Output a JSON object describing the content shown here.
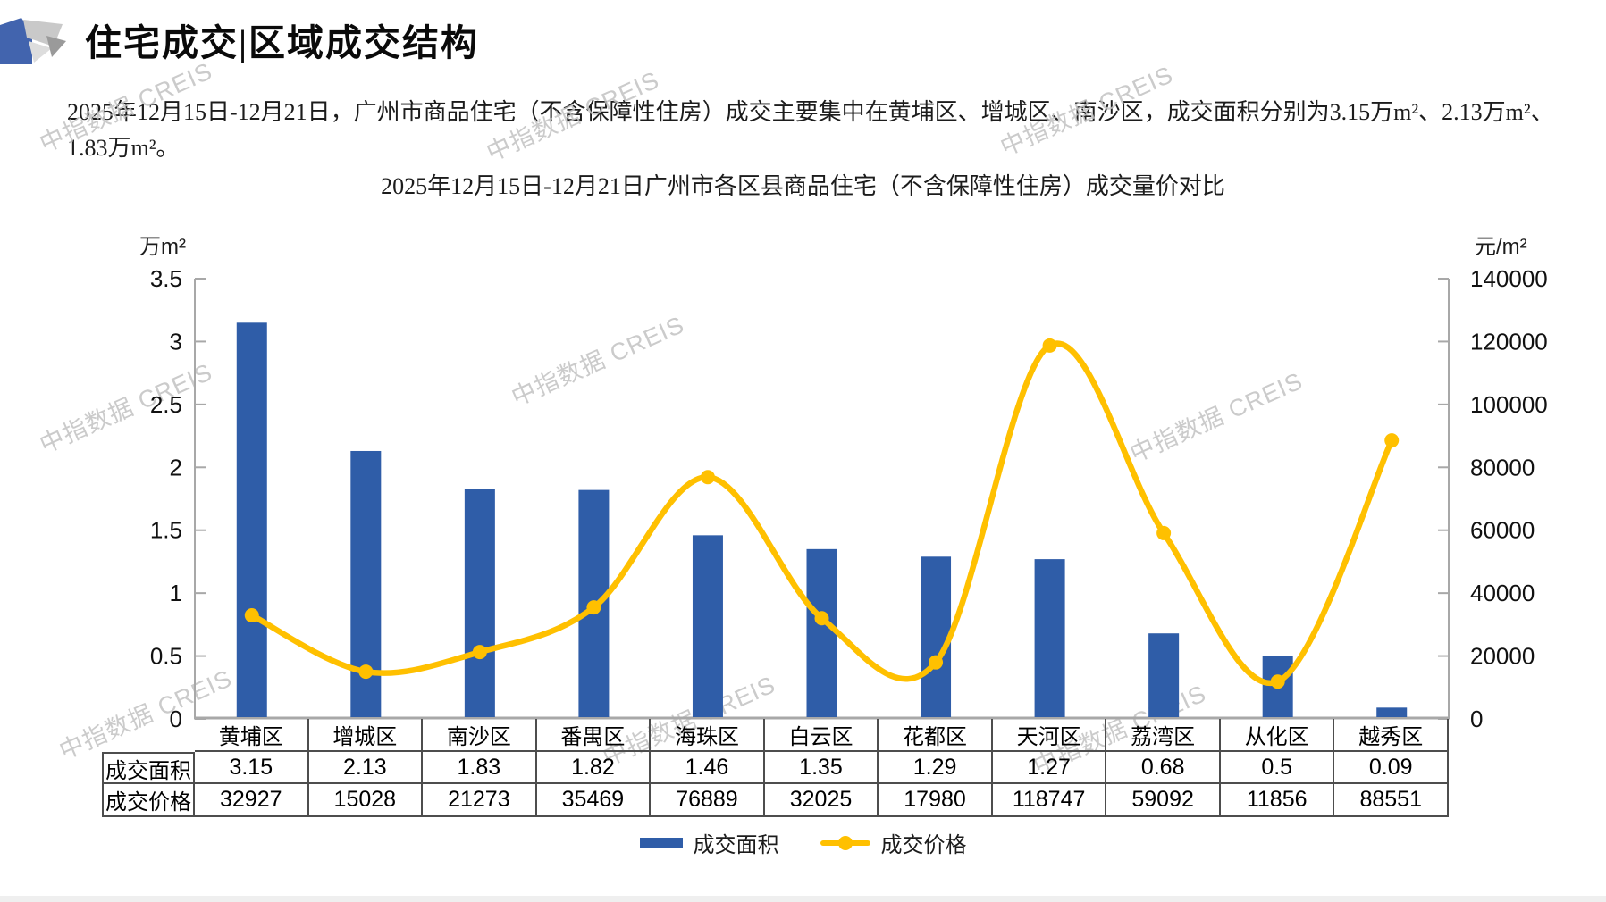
{
  "page": {
    "title": "住宅成交|区域成交结构",
    "intro": "2025年12月15日-12月21日，广州市商品住宅（不含保障性住房）成交主要集中在黄埔区、增城区、南沙区，成交面积分别为3.15万m²、2.13万m²、1.83万m²。",
    "watermark_text": "中指数据 CREIS"
  },
  "chart_data": {
    "type": "bar",
    "subtype": "bar+line dual axis",
    "title": "2025年12月15日-12月21日广州市各区县商品住宅（不含保障性住房）成交量价对比",
    "categories": [
      "黄埔区",
      "增城区",
      "南沙区",
      "番禺区",
      "海珠区",
      "白云区",
      "花都区",
      "天河区",
      "荔湾区",
      "从化区",
      "越秀区"
    ],
    "series": [
      {
        "name": "成交面积",
        "type": "bar",
        "axis": "left",
        "unit": "万m²",
        "color": "#2F5DA8",
        "values": [
          3.15,
          2.13,
          1.83,
          1.82,
          1.46,
          1.35,
          1.29,
          1.27,
          0.68,
          0.5,
          0.09
        ]
      },
      {
        "name": "成交价格",
        "type": "line",
        "axis": "right",
        "unit": "元/m²",
        "color": "#FFC000",
        "values": [
          32927,
          15028,
          21273,
          35469,
          76889,
          32025,
          17980,
          118747,
          59092,
          11856,
          88551
        ]
      }
    ],
    "left_axis": {
      "unit": "万m²",
      "max": 3.5,
      "min": 0,
      "ticks": [
        "3.5",
        "3",
        "2.5",
        "2",
        "1.5",
        "1",
        "0.5",
        "0"
      ]
    },
    "right_axis": {
      "unit": "元/m²",
      "max": 140000,
      "min": 0,
      "ticks": [
        "140000",
        "120000",
        "100000",
        "80000",
        "60000",
        "40000",
        "20000",
        "0"
      ]
    },
    "grid": false,
    "legend_position": "bottom"
  },
  "colors": {
    "bar": "#2F5DA8",
    "line": "#FFC000",
    "axis": "#a8a8a8",
    "table_border": "#4d4d4d",
    "logo_blue": "#4264AE",
    "logo_gray_light": "#C9C9C9",
    "logo_gray_mid": "#9A9A9A"
  }
}
